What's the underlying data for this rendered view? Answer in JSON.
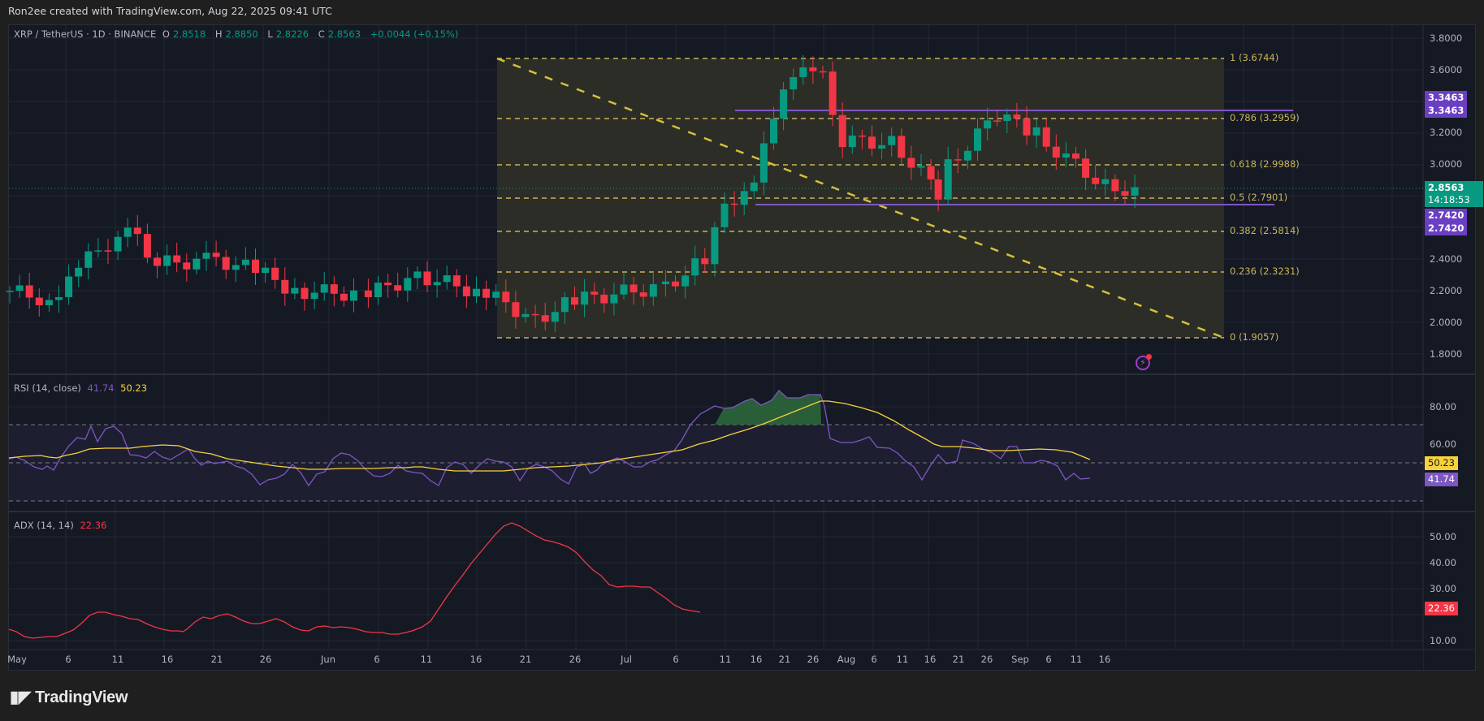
{
  "credit": "Ron2ee created with TradingView.com, Aug 22, 2025 09:41 UTC",
  "symbol": {
    "title": "XRP / TetherUS · 1D · BINANCE",
    "open_label": "O",
    "open": "2.8518",
    "high_label": "H",
    "high": "2.8850",
    "low_label": "L",
    "low": "2.8226",
    "close_label": "C",
    "close": "2.8563",
    "change": "+0.0044 (+0.15%)"
  },
  "price_axis": {
    "ticks": [
      "3.8000",
      "3.6000",
      "3.2000",
      "3.0000",
      "2.4000",
      "2.2000",
      "2.0000",
      "1.8000"
    ],
    "tags": {
      "resistance_1": "3.3463",
      "resistance_2": "3.3463",
      "last_price": "2.8563",
      "countdown": "14:18:53",
      "support_1": "2.7420",
      "support_2": "2.7420"
    }
  },
  "fib_levels": [
    {
      "label": "1 (3.6744)"
    },
    {
      "label": "0.786 (3.2959)"
    },
    {
      "label": "0.618 (2.9988)"
    },
    {
      "label": "0.5 (2.7901)"
    },
    {
      "label": "0.382 (2.5814)"
    },
    {
      "label": "0.236 (2.3231)"
    },
    {
      "label": "0 (1.9057)"
    }
  ],
  "rsi": {
    "title": "RSI (14, close)",
    "value": "41.74",
    "ma": "50.23",
    "ticks": [
      "80.00",
      "60.00"
    ],
    "tag_ma": "50.23",
    "tag_value": "41.74"
  },
  "adx": {
    "title": "ADX (14, 14)",
    "value": "22.36",
    "ticks": [
      "50.00",
      "40.00",
      "30.00",
      "10.00"
    ],
    "tag": "22.36"
  },
  "time_axis": {
    "labels": [
      "May",
      "6",
      "11",
      "16",
      "21",
      "26",
      "Jun",
      "6",
      "11",
      "16",
      "21",
      "26",
      "Jul",
      "6",
      "11",
      "16",
      "21",
      "26",
      "Aug",
      "6",
      "11",
      "16",
      "21",
      "26",
      "Sep",
      "6",
      "11",
      "16"
    ]
  },
  "brand": "TradingView",
  "colors": {
    "up": "#089981",
    "down": "#f23645",
    "fib": "#c9b458",
    "purple": "#7e57c2",
    "rsi_ma": "#f7d23a",
    "adx": "#f23645"
  },
  "chart_data": [
    {
      "type": "candlestick",
      "title": "XRP / TetherUS · 1D · BINANCE",
      "ylim": [
        1.75,
        3.85
      ],
      "x_range": [
        "2025-05-01",
        "2025-09-18"
      ],
      "ohlc_last": {
        "open": 2.8518,
        "high": 2.885,
        "low": 2.8226,
        "close": 2.8563,
        "change": 0.0044,
        "change_pct": 0.15
      },
      "annotations": {
        "fib_retracement": {
          "from": 3.6744,
          "to": 1.9057,
          "levels": {
            "1": 3.6744,
            "0.786": 3.2959,
            "0.618": 2.9988,
            "0.5": 2.7901,
            "0.382": 2.5814,
            "0.236": 2.3231,
            "0": 1.9057
          }
        },
        "horizontal_lines": [
          3.3463,
          2.742
        ],
        "trendline": {
          "from": [
            "2025-06-17",
            3.67
          ],
          "to": [
            "2025-08-31",
            1.91
          ]
        }
      },
      "closes_approx": [
        {
          "d": "05-01",
          "c": 2.2
        },
        {
          "d": "05-05",
          "c": 2.14
        },
        {
          "d": "05-08",
          "c": 2.35
        },
        {
          "d": "05-10",
          "c": 2.45
        },
        {
          "d": "05-12",
          "c": 2.55
        },
        {
          "d": "05-14",
          "c": 2.55
        },
        {
          "d": "05-16",
          "c": 2.37
        },
        {
          "d": "05-22",
          "c": 2.4
        },
        {
          "d": "05-26",
          "c": 2.33
        },
        {
          "d": "05-30",
          "c": 2.2
        },
        {
          "d": "06-05",
          "c": 2.18
        },
        {
          "d": "06-10",
          "c": 2.3
        },
        {
          "d": "06-17",
          "c": 2.18
        },
        {
          "d": "06-22",
          "c": 2.02
        },
        {
          "d": "06-26",
          "c": 2.14
        },
        {
          "d": "07-05",
          "c": 2.23
        },
        {
          "d": "07-09",
          "c": 2.4
        },
        {
          "d": "07-11",
          "c": 2.72
        },
        {
          "d": "07-14",
          "c": 2.92
        },
        {
          "d": "07-17",
          "c": 3.44
        },
        {
          "d": "07-18",
          "c": 3.59
        },
        {
          "d": "07-21",
          "c": 3.55
        },
        {
          "d": "07-23",
          "c": 3.15
        },
        {
          "d": "07-28",
          "c": 3.14
        },
        {
          "d": "08-02",
          "c": 2.82
        },
        {
          "d": "08-03",
          "c": 2.99
        },
        {
          "d": "08-08",
          "c": 3.32
        },
        {
          "d": "08-12",
          "c": 3.19
        },
        {
          "d": "08-14",
          "c": 3.09
        },
        {
          "d": "08-19",
          "c": 2.86
        },
        {
          "d": "08-21",
          "c": 2.85
        },
        {
          "d": "08-22",
          "c": 2.8563
        }
      ]
    },
    {
      "type": "line",
      "title": "RSI (14, close)",
      "ylim": [
        20,
        90
      ],
      "bands": [
        70,
        50,
        30
      ],
      "series": [
        {
          "name": "RSI",
          "last": 41.74,
          "peak": 86,
          "peak_date": "2025-07-18"
        },
        {
          "name": "RSI-MA",
          "last": 50.23,
          "peak": 80,
          "peak_date": "2025-07-22"
        }
      ]
    },
    {
      "type": "line",
      "title": "ADX (14, 14)",
      "ylim": [
        5,
        57
      ],
      "series": [
        {
          "name": "ADX",
          "last": 22.36,
          "peak": 54,
          "peak_date": "2025-07-22"
        }
      ]
    }
  ]
}
